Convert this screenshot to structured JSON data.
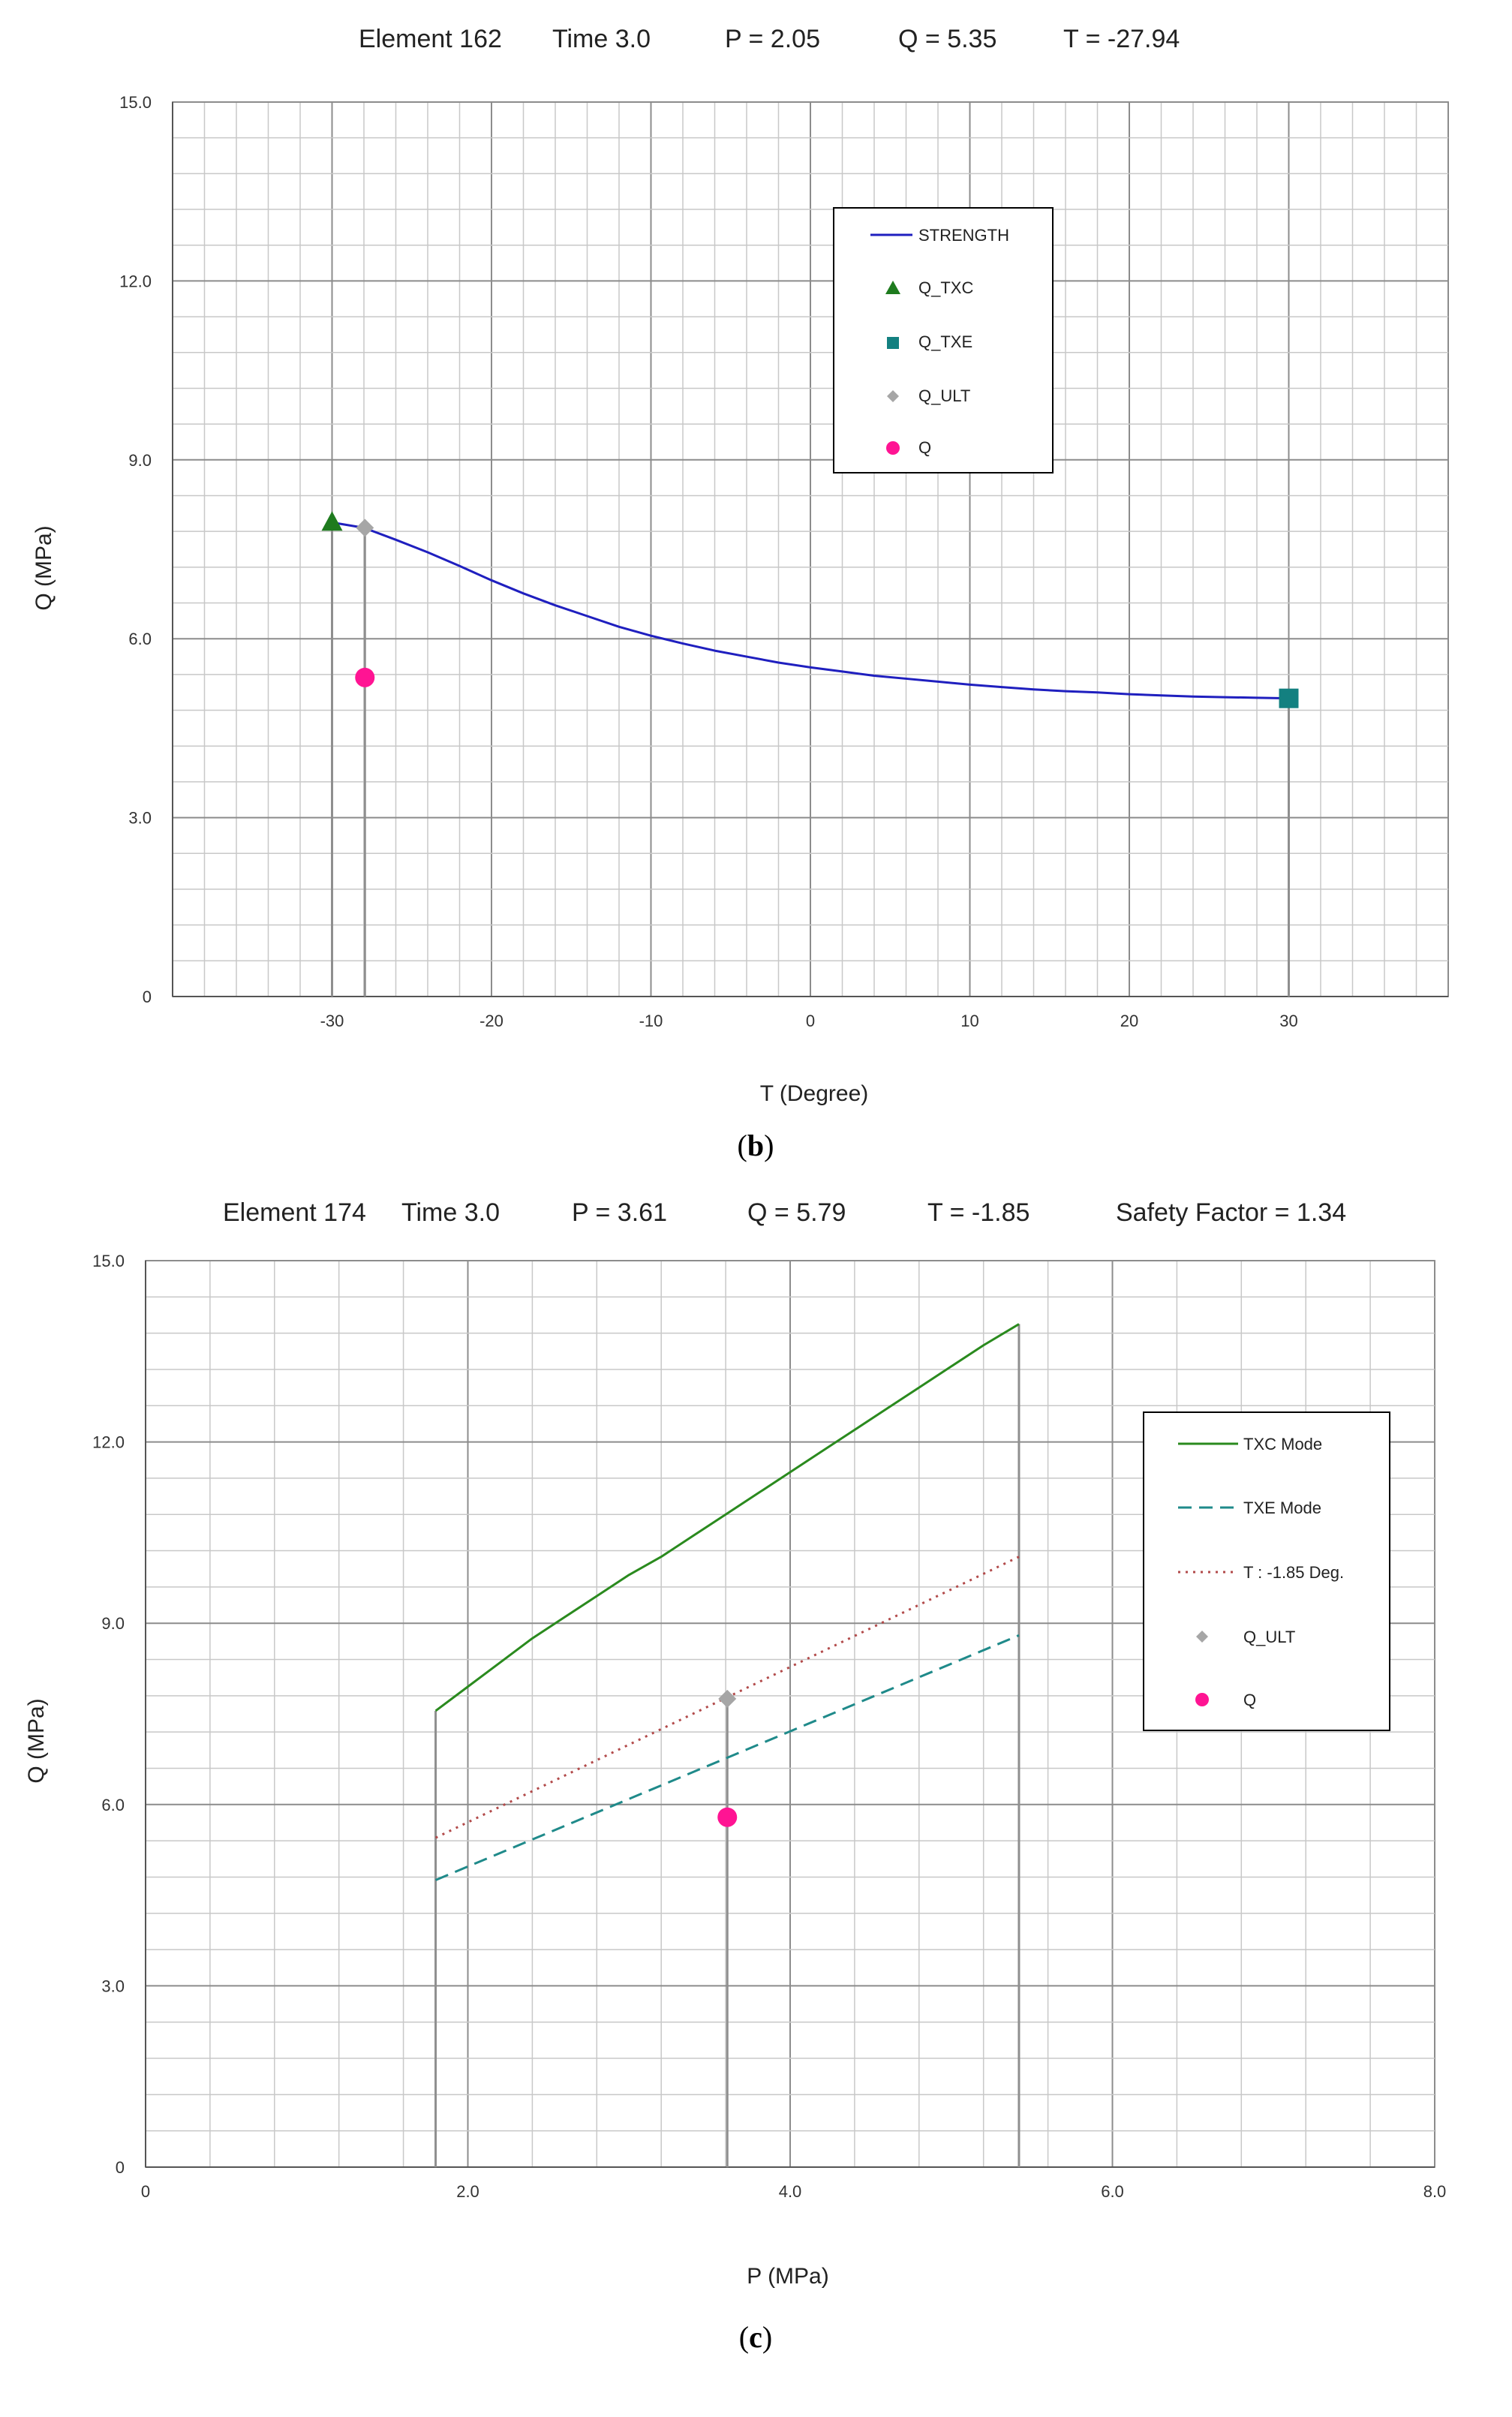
{
  "figure": {
    "panel_b_caption": "b",
    "panel_c_caption": "c"
  },
  "chart_data": [
    {
      "panel": "b",
      "type": "line",
      "header": {
        "element": "Element  162",
        "time": "Time  3.0",
        "p": "P = 2.05",
        "q": "Q =  5.35",
        "t": "T = -27.94"
      },
      "title": "Element 162  Time 3.0  P = 2.05  Q = 5.35  T = -27.94",
      "xlabel": "T (Degree)",
      "ylabel": "Q  (MPa)",
      "xlim": [
        -40,
        40
      ],
      "ylim": [
        0,
        15
      ],
      "x_minor_step": 2,
      "x_major_step": 10,
      "y_minor_step": 0.6,
      "y_major_step": 3,
      "x_ticks": [
        {
          "value": -30,
          "label": "-30"
        },
        {
          "value": -20,
          "label": "-20"
        },
        {
          "value": -10,
          "label": "-10"
        },
        {
          "value": 0,
          "label": "0"
        },
        {
          "value": 10,
          "label": "10"
        },
        {
          "value": 20,
          "label": "20"
        },
        {
          "value": 30,
          "label": "30"
        }
      ],
      "y_ticks": [
        {
          "value": 0,
          "label": "0"
        },
        {
          "value": 3,
          "label": "3.0"
        },
        {
          "value": 6,
          "label": "6.0"
        },
        {
          "value": 9,
          "label": "9.0"
        },
        {
          "value": 12,
          "label": "12.0"
        },
        {
          "value": 15,
          "label": "15.0"
        }
      ],
      "series": [
        {
          "name": "STRENGTH",
          "kind": "line",
          "color": "#1f1fbf",
          "dash": "",
          "x": [
            -30,
            -28,
            -26,
            -24,
            -22,
            -20,
            -18,
            -16,
            -14,
            -12,
            -10,
            -8,
            -6,
            -4,
            -2,
            0,
            2,
            4,
            6,
            8,
            10,
            12,
            14,
            16,
            18,
            20,
            22,
            24,
            26,
            28,
            30
          ],
          "y": [
            7.95,
            7.86,
            7.66,
            7.45,
            7.22,
            6.98,
            6.76,
            6.56,
            6.38,
            6.2,
            6.05,
            5.92,
            5.8,
            5.7,
            5.6,
            5.52,
            5.45,
            5.38,
            5.33,
            5.28,
            5.23,
            5.19,
            5.15,
            5.12,
            5.1,
            5.07,
            5.05,
            5.03,
            5.02,
            5.01,
            5.0
          ]
        },
        {
          "name": "Q_TXC",
          "kind": "marker",
          "marker": "triangle",
          "color": "#1e7b1e",
          "x": [
            -30
          ],
          "y": [
            7.95
          ]
        },
        {
          "name": "Q_TXE",
          "kind": "marker",
          "marker": "square",
          "color": "#138080",
          "x": [
            30
          ],
          "y": [
            5.0
          ]
        },
        {
          "name": "Q_ULT",
          "kind": "marker",
          "marker": "diamond",
          "color": "#a6a6a6",
          "x": [
            -27.94
          ],
          "y": [
            7.86
          ]
        },
        {
          "name": "Q",
          "kind": "marker",
          "marker": "circle",
          "color": "#ff1493",
          "x": [
            -27.94
          ],
          "y": [
            5.35
          ]
        }
      ],
      "drop_lines": [
        {
          "x": -30,
          "y": 7.95
        },
        {
          "x": -27.94,
          "y": 7.86
        },
        {
          "x": 30,
          "y": 5.0
        }
      ],
      "legend": {
        "placement": "top-right",
        "entries": [
          "STRENGTH",
          "Q_TXC",
          "Q_TXE",
          "Q_ULT",
          "Q"
        ]
      }
    },
    {
      "panel": "c",
      "type": "line",
      "header": {
        "element": "Element  174",
        "time": "Time  3.0",
        "p": "P =  3.61",
        "q": "Q =  5.79",
        "t": "T = -1.85",
        "sf": "Safety Factor = 1.34"
      },
      "title": "Element 174  Time 3.0  P = 3.61  Q = 5.79  T = -1.85  Safety Factor = 1.34",
      "xlabel": "P  (MPa)",
      "ylabel": "Q  (MPa)",
      "xlim": [
        0,
        8
      ],
      "ylim": [
        0,
        15
      ],
      "x_minor_step": 0.4,
      "x_major_step": 2,
      "y_minor_step": 0.6,
      "y_major_step": 3,
      "x_ticks": [
        {
          "value": 0,
          "label": "0"
        },
        {
          "value": 2,
          "label": "2.0"
        },
        {
          "value": 4,
          "label": "4.0"
        },
        {
          "value": 6,
          "label": "6.0"
        },
        {
          "value": 8,
          "label": "8.0"
        }
      ],
      "y_ticks": [
        {
          "value": 0,
          "label": "0"
        },
        {
          "value": 3,
          "label": "3.0"
        },
        {
          "value": 6,
          "label": "6.0"
        },
        {
          "value": 9,
          "label": "9.0"
        },
        {
          "value": 12,
          "label": "12.0"
        },
        {
          "value": 15,
          "label": "15.0"
        }
      ],
      "series": [
        {
          "name": "TXC Mode",
          "kind": "line",
          "color": "#2a8a1e",
          "dash": "",
          "x": [
            1.8,
            2.0,
            2.2,
            2.4,
            2.6,
            2.8,
            3.0,
            3.2,
            3.4,
            3.6,
            3.8,
            4.0,
            4.2,
            4.4,
            4.6,
            4.8,
            5.0,
            5.2,
            5.42
          ],
          "y": [
            7.55,
            7.95,
            8.35,
            8.75,
            9.1,
            9.45,
            9.8,
            10.1,
            10.45,
            10.8,
            11.15,
            11.5,
            11.85,
            12.2,
            12.55,
            12.9,
            13.25,
            13.6,
            13.95
          ]
        },
        {
          "name": "TXE Mode",
          "kind": "line",
          "color": "#1f8a8a",
          "dash": "18 10",
          "x": [
            1.8,
            5.42
          ],
          "y": [
            4.75,
            8.8
          ]
        },
        {
          "name": "T :  -1.85 Deg.",
          "kind": "line",
          "color": "#b24a4a",
          "dash": "3 7",
          "x": [
            1.8,
            5.42
          ],
          "y": [
            5.45,
            10.1
          ]
        },
        {
          "name": "Q_ULT",
          "kind": "marker",
          "marker": "diamond",
          "color": "#a6a6a6",
          "x": [
            3.61
          ],
          "y": [
            7.75
          ]
        },
        {
          "name": "Q",
          "kind": "marker",
          "marker": "circle",
          "color": "#ff1493",
          "x": [
            3.61
          ],
          "y": [
            5.79
          ]
        }
      ],
      "drop_lines": [
        {
          "x": 1.8,
          "y": 7.55
        },
        {
          "x": 3.61,
          "y": 7.75
        },
        {
          "x": 5.42,
          "y": 13.95
        }
      ],
      "legend": {
        "placement": "right",
        "entries": [
          "TXC Mode",
          "TXE Mode",
          "T :  -1.85 Deg.",
          "Q_ULT",
          "Q"
        ]
      }
    }
  ]
}
